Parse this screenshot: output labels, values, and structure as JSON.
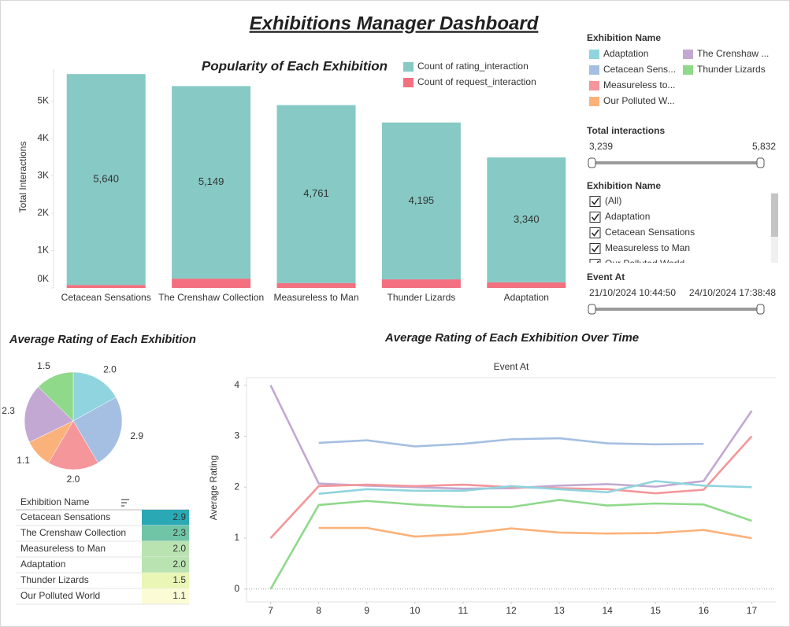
{
  "title": "Exhibitions Manager Dashboard",
  "chart_data": [
    {
      "type": "bar",
      "title": "Popularity of Each Exhibition",
      "y_label": "Total Interactions",
      "categories": [
        "Cetacean Sensations",
        "The Crenshaw Collection",
        "Measureless to Man",
        "Thunder Lizards",
        "Adaptation"
      ],
      "series": [
        {
          "name": "Count of rating_interaction",
          "color": "#86c9c5",
          "values": [
            5640,
            5149,
            4761,
            4195,
            3340
          ],
          "value_labels": [
            "5,640",
            "5,149",
            "4,761",
            "4,195",
            "3,340"
          ]
        },
        {
          "name": "Count of request_interaction",
          "color": "#f2707f",
          "values": [
            80,
            250,
            130,
            230,
            150
          ]
        }
      ],
      "ylim": [
        0,
        5850
      ],
      "yticks": [
        {
          "value": 0,
          "label": "0K"
        },
        {
          "value": 1000,
          "label": "1K"
        },
        {
          "value": 2000,
          "label": "2K"
        },
        {
          "value": 3000,
          "label": "3K"
        },
        {
          "value": 4000,
          "label": "4K"
        },
        {
          "value": 5000,
          "label": "5K"
        }
      ],
      "grid": false
    },
    {
      "type": "pie",
      "title": "Average Rating of Each Exhibition",
      "values": [
        2.0,
        2.9,
        2.0,
        1.1,
        2.3,
        1.5
      ],
      "value_labels": [
        "2.0",
        "2.9",
        "2.0",
        "1.1",
        "2.3",
        "1.5"
      ],
      "colors": [
        "#8fd4de",
        "#a5bfe2",
        "#f4969a",
        "#fbb27a",
        "#c2a8d2",
        "#8fd98b"
      ]
    },
    {
      "type": "line",
      "title": "Average Rating of Each Exhibition Over Time",
      "x_label": "Event At",
      "y_label": "Average Rating",
      "x": [
        7,
        8,
        9,
        10,
        11,
        12,
        13,
        14,
        15,
        16,
        17
      ],
      "series": [
        {
          "color": "#a5bfe2",
          "values": [
            null,
            2.87,
            2.92,
            2.8,
            2.85,
            2.94,
            2.96,
            2.86,
            2.84,
            2.85,
            null
          ]
        },
        {
          "color": "#c2a8d2",
          "values": [
            4.0,
            2.07,
            2.03,
            2.0,
            1.97,
            1.98,
            2.03,
            2.06,
            2.01,
            2.12,
            3.5
          ]
        },
        {
          "color": "#f4969a",
          "values": [
            1.0,
            2.02,
            2.05,
            2.02,
            2.05,
            2.0,
            1.98,
            1.96,
            1.88,
            1.95,
            3.0
          ]
        },
        {
          "color": "#8fd4de",
          "values": [
            null,
            1.87,
            1.96,
            1.93,
            1.93,
            2.02,
            1.96,
            1.9,
            2.12,
            2.03,
            2.0
          ]
        },
        {
          "color": "#8fd98b",
          "values": [
            0,
            1.65,
            1.73,
            1.66,
            1.61,
            1.61,
            1.75,
            1.64,
            1.68,
            1.66,
            1.34
          ]
        },
        {
          "color": "#fbb27a",
          "values": [
            null,
            1.2,
            1.2,
            1.03,
            1.08,
            1.19,
            1.11,
            1.09,
            1.1,
            1.16,
            1.0
          ]
        }
      ],
      "xlim": [
        6.5,
        17.5
      ],
      "xticks": [
        7,
        8,
        9,
        10,
        11,
        12,
        13,
        14,
        15,
        16,
        17
      ],
      "ylim": [
        -0.25,
        4.15
      ],
      "yticks": [
        0,
        1,
        2,
        3,
        4
      ],
      "zero_line": true
    }
  ],
  "legend": {
    "title": "Exhibition Name",
    "items": [
      {
        "label": "Adaptation",
        "color": "#8fd4de"
      },
      {
        "label": "Cetacean Sens...",
        "color": "#a5bfe2"
      },
      {
        "label": "Measureless to...",
        "color": "#f4969a"
      },
      {
        "label": "Our Polluted W...",
        "color": "#fbb27a"
      },
      {
        "label": "The Crenshaw ...",
        "color": "#c2a8d2"
      },
      {
        "label": "Thunder Lizards",
        "color": "#8fd98b"
      }
    ]
  },
  "filters": [
    {
      "title": "Total interactions",
      "range": [
        "3,239",
        "5,832"
      ]
    },
    {
      "title": "Exhibition Name",
      "options": [
        "(All)",
        "Adaptation",
        "Cetacean Sensations",
        "Measureless to Man",
        "Our Polluted World"
      ]
    },
    {
      "title": "Event At",
      "range": [
        "21/10/2024 10:44:50",
        "24/10/2024 17:38:48"
      ]
    }
  ],
  "table": {
    "header": "Exhibition Name",
    "rows": [
      {
        "name": "Cetacean Sensations",
        "value": "2.9",
        "color": "#2aa9b4"
      },
      {
        "name": "The Crenshaw Collection",
        "value": "2.3",
        "color": "#6fc5a6"
      },
      {
        "name": "Measureless to Man",
        "value": "2.0",
        "color": "#b9e4b1"
      },
      {
        "name": "Adaptation",
        "value": "2.0",
        "color": "#b9e4b1"
      },
      {
        "name": "Thunder Lizards",
        "value": "1.5",
        "color": "#eaf6b6"
      },
      {
        "name": "Our Polluted World",
        "value": "1.1",
        "color": "#fbfcd5"
      }
    ]
  }
}
